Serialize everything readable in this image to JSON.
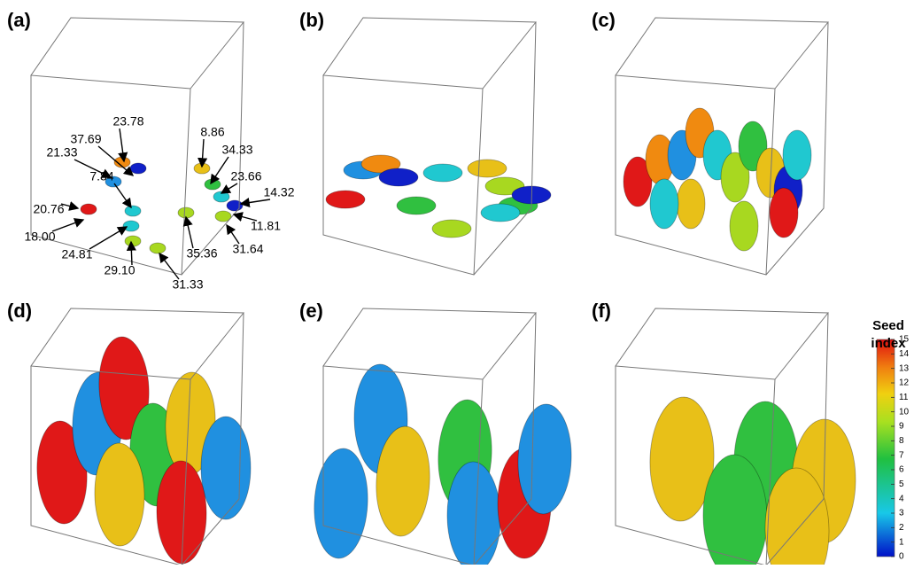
{
  "panels": [
    {
      "label": "(a)"
    },
    {
      "label": "(b)"
    },
    {
      "label": "(c)"
    },
    {
      "label": "(d)"
    },
    {
      "label": "(e)"
    },
    {
      "label": "(f)"
    }
  ],
  "annotations": [
    "37.69",
    "23.78",
    "21.33",
    "8.86",
    "34.33",
    "7.84",
    "23.66",
    "14.32",
    "20.76",
    "11.81",
    "18.00",
    "31.64",
    "35.36",
    "24.81",
    "29.10",
    "31.33"
  ],
  "colorbar": {
    "title": [
      "Seed",
      "index"
    ],
    "ticks": [
      0,
      1,
      2,
      3,
      4,
      5,
      6,
      7,
      8,
      9,
      10,
      11,
      12,
      13,
      14,
      15
    ]
  }
}
